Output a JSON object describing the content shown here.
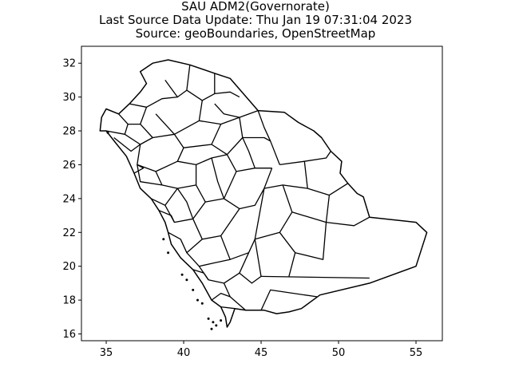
{
  "title_lines": [
    "SAU ADM2(Governorate)",
    "Last Source Data Update: Thu Jan 19 07:31:04 2023",
    "Source: geoBoundaries, OpenStreetMap"
  ],
  "chart_data": {
    "type": "map",
    "xlim": [
      33.4,
      56.7
    ],
    "ylim": [
      15.6,
      33.0
    ],
    "x_ticks": [
      35,
      40,
      45,
      50,
      55
    ],
    "y_ticks": [
      16,
      18,
      20,
      22,
      24,
      26,
      28,
      30,
      32
    ],
    "outline": [
      [
        37.2,
        31.5
      ],
      [
        38.0,
        32.0
      ],
      [
        39.0,
        32.2
      ],
      [
        40.4,
        31.9
      ],
      [
        42.0,
        31.4
      ],
      [
        43.0,
        31.1
      ],
      [
        44.8,
        29.2
      ],
      [
        46.5,
        29.1
      ],
      [
        47.4,
        28.5
      ],
      [
        48.4,
        28.0
      ],
      [
        48.9,
        27.6
      ],
      [
        49.5,
        26.8
      ],
      [
        50.2,
        26.2
      ],
      [
        50.1,
        25.5
      ],
      [
        50.6,
        24.9
      ],
      [
        51.2,
        24.3
      ],
      [
        51.6,
        24.1
      ],
      [
        52.0,
        22.9
      ],
      [
        55.0,
        22.6
      ],
      [
        55.7,
        22.0
      ],
      [
        55.0,
        20.0
      ],
      [
        52.0,
        19.0
      ],
      [
        48.8,
        18.3
      ],
      [
        47.6,
        17.5
      ],
      [
        46.8,
        17.3
      ],
      [
        46.0,
        17.2
      ],
      [
        45.2,
        17.4
      ],
      [
        44.0,
        17.4
      ],
      [
        43.3,
        17.5
      ],
      [
        43.0,
        16.7
      ],
      [
        42.8,
        16.4
      ],
      [
        42.7,
        17.0
      ],
      [
        42.4,
        17.6
      ],
      [
        41.8,
        18.0
      ],
      [
        41.2,
        19.0
      ],
      [
        40.6,
        19.8
      ],
      [
        39.8,
        20.5
      ],
      [
        39.2,
        21.3
      ],
      [
        39.0,
        22.0
      ],
      [
        38.8,
        22.6
      ],
      [
        38.4,
        23.3
      ],
      [
        37.9,
        24.0
      ],
      [
        37.2,
        24.6
      ],
      [
        36.8,
        25.5
      ],
      [
        36.3,
        26.5
      ],
      [
        35.6,
        27.3
      ],
      [
        35.0,
        28.0
      ],
      [
        34.6,
        28.0
      ],
      [
        34.7,
        28.8
      ],
      [
        35.0,
        29.3
      ],
      [
        35.8,
        29.0
      ],
      [
        36.5,
        29.6
      ],
      [
        37.2,
        30.3
      ],
      [
        37.6,
        30.8
      ],
      [
        37.2,
        31.5
      ]
    ],
    "internal_boundaries": [
      [
        [
          45.0,
          17.4
        ],
        [
          45.6,
          18.6
        ],
        [
          48.6,
          18.2
        ]
      ],
      [
        [
          45.0,
          19.4
        ],
        [
          52.0,
          19.3
        ]
      ],
      [
        [
          45.0,
          19.4
        ],
        [
          44.6,
          21.6
        ],
        [
          45.2,
          24.6
        ],
        [
          45.7,
          25.8
        ]
      ],
      [
        [
          46.2,
          26.0
        ],
        [
          45.6,
          27.4
        ],
        [
          45.2,
          28.2
        ],
        [
          44.8,
          29.2
        ]
      ],
      [
        [
          42.0,
          31.4
        ],
        [
          42.0,
          30.2
        ],
        [
          43.0,
          30.3
        ],
        [
          43.6,
          30.0
        ]
      ],
      [
        [
          40.4,
          31.9
        ],
        [
          40.2,
          30.4
        ],
        [
          41.2,
          29.8
        ],
        [
          42.0,
          30.2
        ]
      ],
      [
        [
          38.8,
          31.0
        ],
        [
          39.6,
          30.0
        ],
        [
          40.2,
          30.4
        ]
      ],
      [
        [
          36.5,
          29.6
        ],
        [
          37.6,
          29.4
        ],
        [
          38.6,
          29.9
        ],
        [
          39.6,
          30.0
        ]
      ],
      [
        [
          41.2,
          29.8
        ],
        [
          41.0,
          28.6
        ],
        [
          42.4,
          28.4
        ],
        [
          43.6,
          28.8
        ],
        [
          44.8,
          29.2
        ]
      ],
      [
        [
          37.6,
          29.4
        ],
        [
          37.2,
          28.4
        ],
        [
          38.0,
          27.6
        ],
        [
          39.4,
          27.8
        ],
        [
          41.0,
          28.6
        ]
      ],
      [
        [
          35.8,
          29.0
        ],
        [
          36.4,
          28.4
        ],
        [
          37.2,
          28.4
        ]
      ],
      [
        [
          35.0,
          28.0
        ],
        [
          36.2,
          27.8
        ],
        [
          36.4,
          28.4
        ]
      ],
      [
        [
          36.2,
          27.8
        ],
        [
          37.2,
          27.2
        ],
        [
          38.0,
          27.6
        ]
      ],
      [
        [
          39.4,
          27.8
        ],
        [
          40.0,
          27.0
        ],
        [
          41.8,
          27.2
        ],
        [
          42.4,
          28.4
        ]
      ],
      [
        [
          43.6,
          28.8
        ],
        [
          43.8,
          27.6
        ],
        [
          45.2,
          27.6
        ],
        [
          45.6,
          27.4
        ]
      ],
      [
        [
          41.8,
          27.2
        ],
        [
          42.8,
          26.6
        ],
        [
          43.8,
          27.6
        ]
      ],
      [
        [
          37.2,
          27.2
        ],
        [
          37.0,
          26.0
        ],
        [
          38.2,
          25.6
        ],
        [
          39.6,
          26.2
        ],
        [
          40.0,
          27.0
        ]
      ],
      [
        [
          39.6,
          26.2
        ],
        [
          40.8,
          26.0
        ],
        [
          41.8,
          26.4
        ],
        [
          42.8,
          26.6
        ]
      ],
      [
        [
          42.8,
          26.6
        ],
        [
          43.4,
          25.6
        ],
        [
          44.6,
          25.8
        ],
        [
          45.7,
          25.8
        ]
      ],
      [
        [
          46.2,
          26.0
        ],
        [
          47.8,
          26.2
        ],
        [
          49.2,
          26.4
        ],
        [
          49.5,
          26.8
        ]
      ],
      [
        [
          47.8,
          26.2
        ],
        [
          48.0,
          24.6
        ],
        [
          49.4,
          24.2
        ],
        [
          50.6,
          24.9
        ]
      ],
      [
        [
          49.4,
          24.2
        ],
        [
          49.2,
          22.6
        ],
        [
          51.0,
          22.4
        ],
        [
          52.0,
          22.9
        ]
      ],
      [
        [
          45.2,
          24.6
        ],
        [
          46.4,
          24.8
        ],
        [
          48.0,
          24.6
        ]
      ],
      [
        [
          46.4,
          24.8
        ],
        [
          47.0,
          23.2
        ],
        [
          49.2,
          22.6
        ]
      ],
      [
        [
          44.6,
          21.6
        ],
        [
          46.2,
          22.0
        ],
        [
          47.0,
          23.2
        ]
      ],
      [
        [
          46.2,
          22.0
        ],
        [
          47.2,
          20.8
        ],
        [
          49.0,
          20.4
        ],
        [
          49.2,
          22.6
        ]
      ],
      [
        [
          47.2,
          20.8
        ],
        [
          46.8,
          19.4
        ]
      ],
      [
        [
          37.0,
          26.0
        ],
        [
          37.2,
          25.0
        ],
        [
          38.6,
          24.8
        ],
        [
          38.2,
          25.6
        ]
      ],
      [
        [
          38.6,
          24.8
        ],
        [
          39.6,
          24.6
        ],
        [
          40.8,
          24.8
        ],
        [
          40.8,
          26.0
        ]
      ],
      [
        [
          40.8,
          24.8
        ],
        [
          41.4,
          23.8
        ],
        [
          42.6,
          24.0
        ],
        [
          43.4,
          25.6
        ]
      ],
      [
        [
          42.6,
          24.0
        ],
        [
          43.6,
          23.4
        ],
        [
          44.6,
          23.6
        ],
        [
          45.2,
          24.6
        ]
      ],
      [
        [
          37.9,
          24.0
        ],
        [
          38.8,
          23.6
        ],
        [
          39.6,
          24.6
        ]
      ],
      [
        [
          38.8,
          23.6
        ],
        [
          39.4,
          22.6
        ],
        [
          40.6,
          22.8
        ],
        [
          41.4,
          23.8
        ]
      ],
      [
        [
          40.6,
          22.8
        ],
        [
          41.2,
          21.6
        ],
        [
          42.4,
          21.8
        ],
        [
          43.6,
          23.4
        ]
      ],
      [
        [
          42.4,
          21.8
        ],
        [
          43.0,
          20.4
        ],
        [
          44.2,
          20.8
        ],
        [
          44.6,
          21.6
        ]
      ],
      [
        [
          39.0,
          22.0
        ],
        [
          39.8,
          21.6
        ],
        [
          40.2,
          20.8
        ],
        [
          41.2,
          21.6
        ]
      ],
      [
        [
          40.2,
          20.8
        ],
        [
          41.0,
          20.0
        ],
        [
          42.0,
          20.2
        ],
        [
          43.0,
          20.4
        ]
      ],
      [
        [
          41.0,
          20.0
        ],
        [
          41.6,
          19.2
        ],
        [
          42.6,
          19.0
        ],
        [
          43.6,
          19.6
        ],
        [
          44.2,
          20.8
        ]
      ],
      [
        [
          42.6,
          19.0
        ],
        [
          43.0,
          18.2
        ],
        [
          44.0,
          17.4
        ]
      ],
      [
        [
          41.8,
          18.0
        ],
        [
          42.4,
          18.4
        ],
        [
          43.0,
          18.2
        ]
      ],
      [
        [
          42.4,
          17.6
        ],
        [
          43.3,
          17.5
        ]
      ],
      [
        [
          43.6,
          19.6
        ],
        [
          44.4,
          19.0
        ],
        [
          45.0,
          19.4
        ]
      ],
      [
        [
          35.5,
          27.6
        ],
        [
          36.6,
          26.8
        ],
        [
          37.2,
          27.2
        ]
      ],
      [
        [
          36.8,
          25.5
        ],
        [
          37.4,
          25.8
        ],
        [
          37.0,
          26.0
        ]
      ],
      [
        [
          38.4,
          23.3
        ],
        [
          39.2,
          23.0
        ],
        [
          39.4,
          22.6
        ]
      ],
      [
        [
          40.6,
          19.8
        ],
        [
          41.3,
          19.6
        ],
        [
          41.6,
          19.2
        ]
      ],
      [
        [
          43.8,
          27.6
        ],
        [
          44.2,
          26.8
        ],
        [
          44.6,
          25.8
        ]
      ],
      [
        [
          41.8,
          26.4
        ],
        [
          42.2,
          25.0
        ],
        [
          42.6,
          24.0
        ]
      ],
      [
        [
          39.6,
          24.6
        ],
        [
          40.2,
          23.8
        ],
        [
          40.6,
          22.8
        ]
      ],
      [
        [
          38.2,
          29.0
        ],
        [
          38.8,
          28.4
        ],
        [
          39.4,
          27.8
        ]
      ],
      [
        [
          42.0,
          29.6
        ],
        [
          42.6,
          29.0
        ],
        [
          43.6,
          28.8
        ]
      ]
    ],
    "islands": [
      [
        41.6,
        16.9
      ],
      [
        41.9,
        16.7
      ],
      [
        42.1,
        16.5
      ],
      [
        41.8,
        16.3
      ],
      [
        42.4,
        16.8
      ],
      [
        40.6,
        18.6
      ],
      [
        40.9,
        18.0
      ],
      [
        41.2,
        17.8
      ],
      [
        39.9,
        19.5
      ],
      [
        40.2,
        19.2
      ],
      [
        38.7,
        21.6
      ],
      [
        39.0,
        20.8
      ],
      [
        35.1,
        27.9
      ]
    ]
  }
}
